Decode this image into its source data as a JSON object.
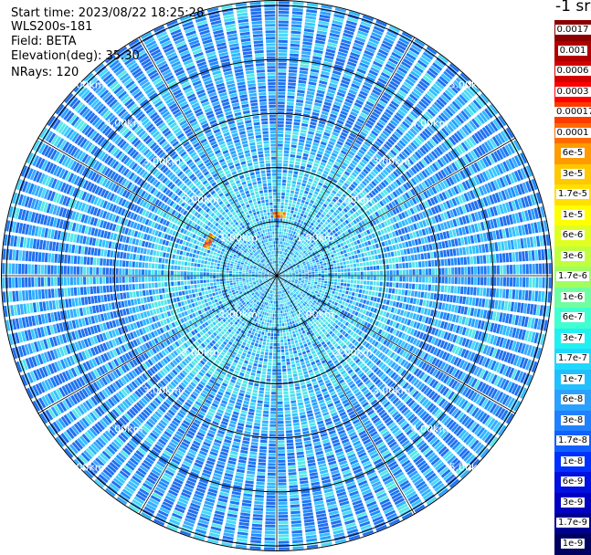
{
  "info": {
    "start_time": "Start time: 2023/08/22 18:25:28",
    "instrument": "WLS200s-181",
    "field": "Field: BETA",
    "elevation": "Elevation(deg): 35.30",
    "nrays": "NRays: 120"
  },
  "colorbar": {
    "unit": "-1 sr",
    "labels": [
      "0.0017",
      "0.001",
      "0.0006",
      "0.0003",
      "0.00017",
      "0.0001",
      "6e-5",
      "3e-5",
      "1.7e-5",
      "1e-5",
      "6e-6",
      "3e-6",
      "1.7e-6",
      "1e-6",
      "6e-7",
      "3e-7",
      "1.7e-7",
      "1e-7",
      "6e-8",
      "3e-8",
      "1.7e-8",
      "1e-8",
      "6e-9",
      "3e-9",
      "1.7e-9",
      "1e-9"
    ],
    "colors": [
      "#8b0000",
      "#b00000",
      "#d40000",
      "#ff0000",
      "#ff3a00",
      "#ff6a00",
      "#ff9a00",
      "#ffc800",
      "#ffe000",
      "#ffff00",
      "#e0ff20",
      "#c0ff40",
      "#a0ff60",
      "#70ffa0",
      "#40ffd0",
      "#20f0f0",
      "#20d8ff",
      "#20c0ff",
      "#2aa0ff",
      "#2080ff",
      "#1060ff",
      "#0030ff",
      "#0010e0",
      "#0000c0",
      "#000090",
      "#000060"
    ]
  },
  "chart_data": {
    "type": "heatmap",
    "projection": "polar (PPI scan)",
    "field": "BETA",
    "elevation_deg": 35.3,
    "n_rays": 120,
    "range_rings": [
      {
        "range_km": 1.0,
        "label": "1.00km"
      },
      {
        "range_km": 2.0,
        "label": "2.00km"
      },
      {
        "range_km": 3.0,
        "label": "3.00km"
      },
      {
        "range_km": 4.0,
        "label": "4.00km"
      },
      {
        "range_km": 5.0,
        "label": "5.00km"
      }
    ],
    "max_range_km": 5.1,
    "radial_lines_deg": [
      0,
      30,
      60,
      90,
      120,
      150,
      180,
      210,
      240,
      270,
      300,
      330
    ],
    "high_value_cells": [
      {
        "azimuth_deg": 2,
        "range_km": 1.07,
        "approx_value": 0.0003
      },
      {
        "azimuth_deg": 297,
        "range_km": 1.35,
        "approx_value": 0.0003
      }
    ],
    "background_value_range": [
      "1e-8",
      "1e-6"
    ]
  }
}
